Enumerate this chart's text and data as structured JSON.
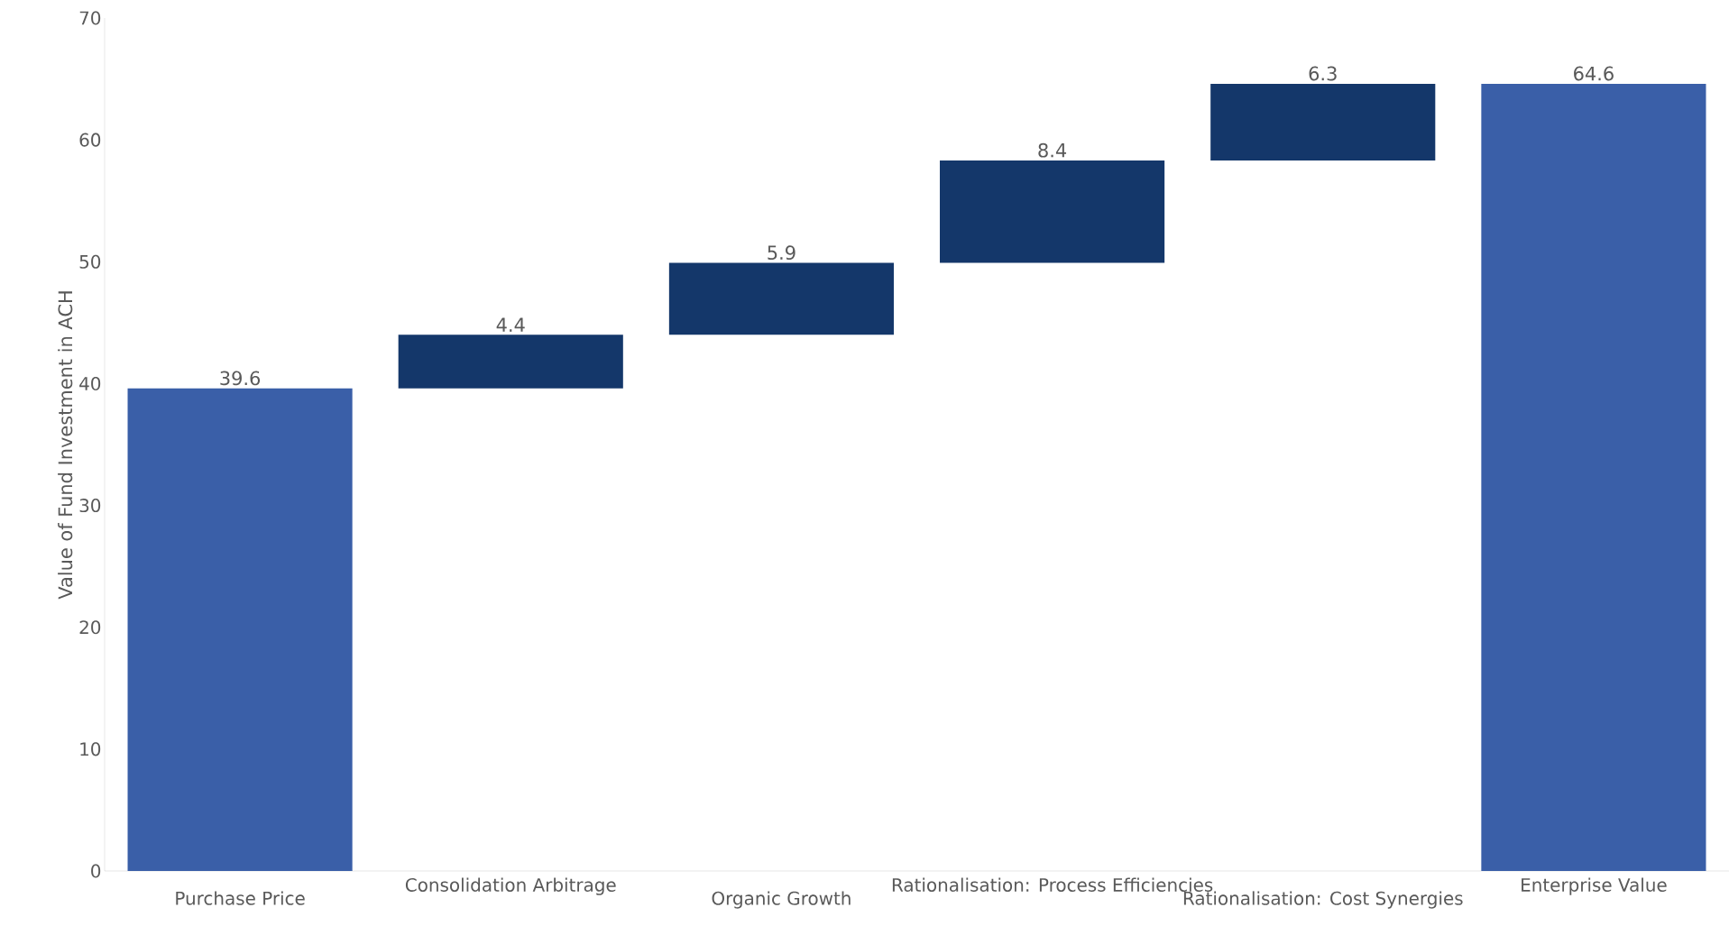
{
  "chart_data": {
    "type": "bar",
    "ylabel": "Value of Fund Investment in ACH",
    "categories": [
      "Purchase Price",
      "Consolidation Arbitrage",
      "Organic Growth",
      "Rationalisation: Process Efficiencies",
      "Rationalisation: Cost Synergies",
      "Enterprise Value"
    ],
    "values": [
      39.6,
      4.4,
      5.9,
      8.4,
      6.3,
      64.6
    ],
    "base": [
      0,
      39.6,
      44.0,
      49.9,
      58.3,
      0
    ],
    "colors": [
      "#3a5fa8",
      "#14376a",
      "#14376a",
      "#14376a",
      "#14376a",
      "#3a5fa8"
    ],
    "value_labels": [
      "39.6",
      "4.4",
      "5.9",
      "8.4",
      "6.3",
      "64.6"
    ],
    "ylim": [
      0,
      70
    ],
    "yticks": [
      0,
      10,
      20,
      30,
      40,
      50,
      60,
      70
    ],
    "grid": false
  }
}
